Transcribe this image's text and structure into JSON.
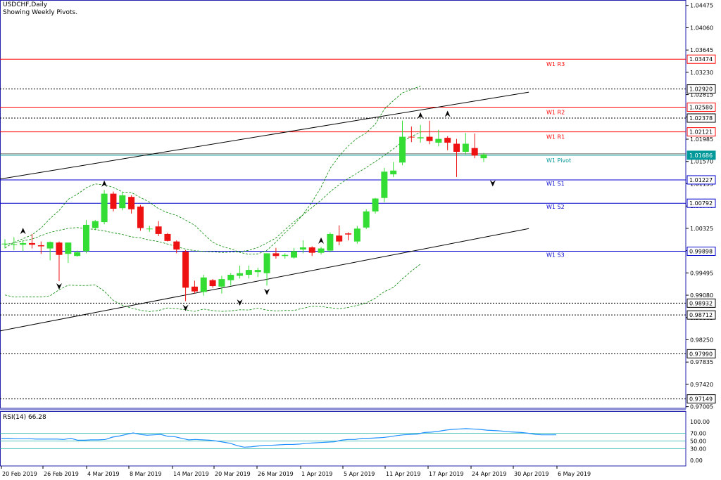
{
  "header": {
    "title": "USDCHF,Daily",
    "subtitle": "Showing Weekly Pivots."
  },
  "rsi_label": "RSI(14) 66.28",
  "colors": {
    "bull": "#33dd33",
    "bear": "#ee1111",
    "resistance": "#ff0000",
    "support": "#0000cc",
    "pivot": "#009999",
    "band": "#008800",
    "rsi_line": "#1e90ff",
    "rsi_level": "#20b2aa",
    "frame": "#2222aa"
  },
  "chart_data": {
    "type": "candlestick",
    "symbol": "USDCHF",
    "timeframe": "Daily",
    "ylim": [
      0.97,
      1.0455
    ],
    "y_ticks": [
      "1.04475",
      "1.04060",
      "1.03645",
      "1.03230",
      "1.02815",
      "1.02400",
      "1.01985",
      "1.01570",
      "1.01155",
      "1.00740",
      "1.00325",
      "0.99910",
      "0.99495",
      "0.99080",
      "0.98665",
      "0.98250",
      "0.97835",
      "0.97420",
      "0.97005"
    ],
    "x_ticks": [
      "20 Feb 2019",
      "26 Feb 2019",
      "4 Mar 2019",
      "8 Mar 2019",
      "14 Mar 2019",
      "20 Mar 2019",
      "26 Mar 2019",
      "1 Apr 2019",
      "5 Apr 2019",
      "11 Apr 2019",
      "17 Apr 2019",
      "24 Apr 2019",
      "30 Apr 2019",
      "6 May 2019"
    ],
    "candles": [
      {
        "o": 1.0004,
        "h": 1.0012,
        "l": 0.9995,
        "c": 1.0004
      },
      {
        "o": 1.0003,
        "h": 1.0016,
        "l": 0.9992,
        "c": 1.0003
      },
      {
        "o": 1.0002,
        "h": 1.001,
        "l": 0.999,
        "c": 1.0005
      },
      {
        "o": 1.0005,
        "h": 1.0022,
        "l": 0.9995,
        "c": 1.0002
      },
      {
        "o": 1.0001,
        "h": 1.0008,
        "l": 0.9985,
        "c": 0.9999
      },
      {
        "o": 0.9995,
        "h": 1.0008,
        "l": 0.9973,
        "c": 1.0007
      },
      {
        "o": 1.0006,
        "h": 1.0008,
        "l": 0.9934,
        "c": 0.9983
      },
      {
        "o": 0.9985,
        "h": 1.0006,
        "l": 0.9968,
        "c": 1.0006
      },
      {
        "o": 0.9981,
        "h": 0.9991,
        "l": 0.998,
        "c": 0.9988
      },
      {
        "o": 0.999,
        "h": 1.0048,
        "l": 0.9986,
        "c": 1.0039
      },
      {
        "o": 1.0033,
        "h": 1.0048,
        "l": 1.0029,
        "c": 1.0046
      },
      {
        "o": 1.0044,
        "h": 1.0104,
        "l": 1.004,
        "c": 1.0097
      },
      {
        "o": 1.0097,
        "h": 1.0101,
        "l": 1.0064,
        "c": 1.0069
      },
      {
        "o": 1.007,
        "h": 1.0101,
        "l": 1.0066,
        "c": 1.0094
      },
      {
        "o": 1.0091,
        "h": 1.0094,
        "l": 1.006,
        "c": 1.0068
      },
      {
        "o": 1.0073,
        "h": 1.0076,
        "l": 1.0028,
        "c": 1.0033
      },
      {
        "o": 1.0031,
        "h": 1.0037,
        "l": 1.0026,
        "c": 1.0032
      },
      {
        "o": 1.0036,
        "h": 1.0046,
        "l": 1.0018,
        "c": 1.0022
      },
      {
        "o": 1.0022,
        "h": 1.0024,
        "l": 1.0008,
        "c": 1.0009
      },
      {
        "o": 1.0008,
        "h": 1.001,
        "l": 0.9986,
        "c": 0.9993
      },
      {
        "o": 0.9989,
        "h": 0.9992,
        "l": 0.9897,
        "c": 0.9922
      },
      {
        "o": 0.9924,
        "h": 0.9935,
        "l": 0.9911,
        "c": 0.9915
      },
      {
        "o": 0.9914,
        "h": 0.9946,
        "l": 0.9907,
        "c": 0.9941
      },
      {
        "o": 0.9936,
        "h": 0.9938,
        "l": 0.9922,
        "c": 0.9925
      },
      {
        "o": 0.9924,
        "h": 0.9944,
        "l": 0.9911,
        "c": 0.9938
      },
      {
        "o": 0.9936,
        "h": 0.9949,
        "l": 0.9926,
        "c": 0.9946
      },
      {
        "o": 0.9944,
        "h": 0.9963,
        "l": 0.9939,
        "c": 0.9949
      },
      {
        "o": 0.9946,
        "h": 0.9963,
        "l": 0.9939,
        "c": 0.9955
      },
      {
        "o": 0.9951,
        "h": 0.9959,
        "l": 0.9942,
        "c": 0.9955
      },
      {
        "o": 0.9949,
        "h": 0.9986,
        "l": 0.9926,
        "c": 0.9986
      },
      {
        "o": 0.9986,
        "h": 0.9996,
        "l": 0.9976,
        "c": 0.9981
      },
      {
        "o": 0.9981,
        "h": 0.9986,
        "l": 0.9976,
        "c": 0.9983
      },
      {
        "o": 0.9978,
        "h": 0.9996,
        "l": 0.9976,
        "c": 0.999
      },
      {
        "o": 0.9993,
        "h": 1.001,
        "l": 0.9986,
        "c": 0.9997
      },
      {
        "o": 0.9997,
        "h": 0.9999,
        "l": 0.9981,
        "c": 0.9987
      },
      {
        "o": 0.9987,
        "h": 0.9998,
        "l": 0.9984,
        "c": 0.9995
      },
      {
        "o": 0.9991,
        "h": 1.0025,
        "l": 0.9988,
        "c": 1.0022
      },
      {
        "o": 1.0019,
        "h": 1.0038,
        "l": 1.0001,
        "c": 1.0008
      },
      {
        "o": 1.0023,
        "h": 1.0025,
        "l": 1.001,
        "c": 1.0021
      },
      {
        "o": 1.0008,
        "h": 1.0037,
        "l": 1.0004,
        "c": 1.0032
      },
      {
        "o": 1.0034,
        "h": 1.0068,
        "l": 1.0031,
        "c": 1.0064
      },
      {
        "o": 1.0064,
        "h": 1.0089,
        "l": 1.006,
        "c": 1.0088
      },
      {
        "o": 1.0089,
        "h": 1.0145,
        "l": 1.0081,
        "c": 1.0138
      },
      {
        "o": 1.0133,
        "h": 1.0156,
        "l": 1.0128,
        "c": 1.014
      },
      {
        "o": 1.0155,
        "h": 1.0233,
        "l": 1.015,
        "c": 1.0203
      },
      {
        "o": 1.0203,
        "h": 1.0222,
        "l": 1.0193,
        "c": 1.0202
      },
      {
        "o": 1.02,
        "h": 1.0225,
        "l": 1.0192,
        "c": 1.0202
      },
      {
        "o": 1.0203,
        "h": 1.0233,
        "l": 1.0189,
        "c": 1.0195
      },
      {
        "o": 1.0192,
        "h": 1.0216,
        "l": 1.0185,
        "c": 1.0199
      },
      {
        "o": 1.0201,
        "h": 1.0204,
        "l": 1.0178,
        "c": 1.0192
      },
      {
        "o": 1.019,
        "h": 1.0199,
        "l": 1.0128,
        "c": 1.0175
      },
      {
        "o": 1.0175,
        "h": 1.021,
        "l": 1.017,
        "c": 1.019
      },
      {
        "o": 1.0182,
        "h": 1.0209,
        "l": 1.0163,
        "c": 1.0168
      },
      {
        "o": 1.0163,
        "h": 1.0173,
        "l": 1.0156,
        "c": 1.017
      }
    ],
    "bollinger": {
      "upper": [
        0.99959,
        1.00064,
        1.00132,
        1.00204,
        1.0033,
        1.00505,
        1.00658,
        1.00865,
        1.00957,
        1.01081,
        1.01152,
        1.01133,
        1.01088,
        1.01001,
        1.00992,
        1.00898,
        1.00813,
        1.00691,
        1.00616,
        1.00566,
        1.00478,
        1.00383,
        1.00217,
        1.00065,
        0.99989,
        0.99943,
        0.99877,
        0.99842,
        0.9985,
        0.99916,
        1.00069,
        1.00241,
        1.00396,
        1.0058,
        1.00815,
        1.01093,
        1.01441,
        1.01669,
        1.01858,
        1.02002,
        1.02104,
        1.02265,
        1.02543,
        1.02702,
        1.02848,
        1.02911,
        1.02974
      ],
      "mid": [
        1.00022,
        1.00055,
        1.0009,
        1.00125,
        1.00189,
        1.0025,
        1.00288,
        1.00325,
        1.00339,
        1.00321,
        1.00303,
        1.00278,
        1.00241,
        1.00212,
        1.00167,
        1.00147,
        1.00105,
        1.00079,
        1.00033,
        0.99985,
        0.99938,
        0.99908,
        0.99895,
        0.99889,
        0.99874,
        0.99882,
        0.9989,
        0.99916,
        0.99967,
        1.00053,
        1.00145,
        1.00301,
        1.00446,
        1.00576,
        1.00713,
        1.00851,
        1.01006,
        1.0114,
        1.01254,
        1.01354,
        1.01458,
        1.01567,
        1.01683,
        1.01804,
        1.01936,
        1.02038,
        1.0211
      ],
      "lower": [
        0.99084,
        0.99045,
        0.99047,
        0.99047,
        0.99047,
        0.99069,
        0.99181,
        0.99266,
        0.99262,
        0.9926,
        0.99272,
        0.99152,
        0.98981,
        0.98893,
        0.98839,
        0.988,
        0.98775,
        0.98795,
        0.98843,
        0.98828,
        0.98809,
        0.98778,
        0.98822,
        0.98793,
        0.98779,
        0.98787,
        0.98809,
        0.98804,
        0.98837,
        0.98803,
        0.98787,
        0.98795,
        0.98796,
        0.98837,
        0.98873,
        0.98868,
        0.98847,
        0.98826,
        0.98852,
        0.98891,
        0.98935,
        0.99025,
        0.99146,
        0.99224,
        0.99385,
        0.99528,
        0.9966
      ]
    },
    "pivots": [
      {
        "label": "W1 R3",
        "value": 1.03474,
        "kind": "resistance"
      },
      {
        "label": "W1 R2",
        "value": 1.0258,
        "kind": "resistance"
      },
      {
        "label": "W1 R1",
        "value": 1.02121,
        "kind": "resistance"
      },
      {
        "label": "W1 Pivot",
        "value": 1.01686,
        "kind": "pivot"
      },
      {
        "label": "W1 S1",
        "value": 1.01227,
        "kind": "support"
      },
      {
        "label": "W1 S2",
        "value": 1.00792,
        "kind": "support"
      },
      {
        "label": "W1 S3",
        "value": 0.99898,
        "kind": "support"
      }
    ],
    "dotted_levels": [
      {
        "label": "1.02920",
        "value": 1.0292
      },
      {
        "label": "1.02378",
        "value": 1.02378
      },
      {
        "label": "0.98932",
        "value": 0.98932
      },
      {
        "label": "0.98712",
        "value": 0.98712
      },
      {
        "label": "0.97990",
        "value": 0.9799
      },
      {
        "label": "0.97149",
        "value": 0.97149
      }
    ],
    "price_tags": [
      {
        "label": "1.03474",
        "value": 1.03474,
        "kind": "resistance"
      },
      {
        "label": "1.02920",
        "value": 1.0292,
        "kind": "dotted"
      },
      {
        "label": "1.02580",
        "value": 1.0258,
        "kind": "resistance"
      },
      {
        "label": "1.02378",
        "value": 1.02378,
        "kind": "dotted"
      },
      {
        "label": "1.02121",
        "value": 1.02121,
        "kind": "resistance"
      },
      {
        "label": "1.01686",
        "value": 1.01686,
        "kind": "current"
      },
      {
        "label": "1.01227",
        "value": 1.01227,
        "kind": "support"
      },
      {
        "label": "1.00792",
        "value": 1.00792,
        "kind": "support"
      },
      {
        "label": "0.99898",
        "value": 0.99898,
        "kind": "support"
      },
      {
        "label": "0.98932",
        "value": 0.98932,
        "kind": "dotted"
      },
      {
        "label": "0.98712",
        "value": 0.98712,
        "kind": "dotted"
      },
      {
        "label": "0.97990",
        "value": 0.9799,
        "kind": "dotted"
      },
      {
        "label": "0.97149",
        "value": 0.97149,
        "kind": "dotted"
      }
    ],
    "trendlines": [
      {
        "from": {
          "i": -1,
          "v": 1.0123
        },
        "to": {
          "i": 58,
          "v": 1.0286
        }
      },
      {
        "from": {
          "i": -1,
          "v": 0.984
        },
        "to": {
          "i": 58,
          "v": 1.0032
        }
      }
    ],
    "fractals": [
      {
        "i": 2,
        "v": 1.0027,
        "dir": "up"
      },
      {
        "i": 6,
        "v": 0.9925,
        "dir": "down"
      },
      {
        "i": 11,
        "v": 1.0115,
        "dir": "up"
      },
      {
        "i": 20,
        "v": 0.9885,
        "dir": "down"
      },
      {
        "i": 26,
        "v": 0.9895,
        "dir": "down"
      },
      {
        "i": 29,
        "v": 0.9915,
        "dir": "down"
      },
      {
        "i": 35,
        "v": 1.0009,
        "dir": "up"
      },
      {
        "i": 46,
        "v": 1.0242,
        "dir": "up"
      },
      {
        "i": 49,
        "v": 1.0245,
        "dir": "up"
      },
      {
        "i": 54,
        "v": 1.0117,
        "dir": "down"
      }
    ],
    "rsi": {
      "name": "RSI(14)",
      "value": "66.28",
      "ylim": [
        0,
        100
      ],
      "levels": [
        70,
        50,
        30
      ],
      "y_ticks": [
        "100.00",
        "70.00",
        "50.00",
        "30.00",
        "0.00"
      ],
      "values": [
        57,
        57,
        56,
        56,
        56,
        55,
        55,
        55,
        55,
        54,
        57,
        52,
        52,
        53,
        53,
        54,
        60,
        63,
        67,
        71,
        67,
        65,
        66,
        67,
        62,
        61,
        57,
        53,
        54,
        53,
        52,
        50,
        47,
        44,
        38,
        34,
        35,
        37,
        39,
        39,
        40,
        41,
        41,
        42,
        44,
        45,
        46,
        47,
        48,
        52,
        54,
        54,
        57,
        57,
        58,
        59,
        61,
        64,
        66,
        67,
        68,
        72,
        73,
        75,
        78,
        80,
        81,
        82,
        81,
        80,
        78,
        77,
        76,
        74,
        73,
        72,
        70,
        67,
        66,
        66,
        66
      ]
    }
  }
}
